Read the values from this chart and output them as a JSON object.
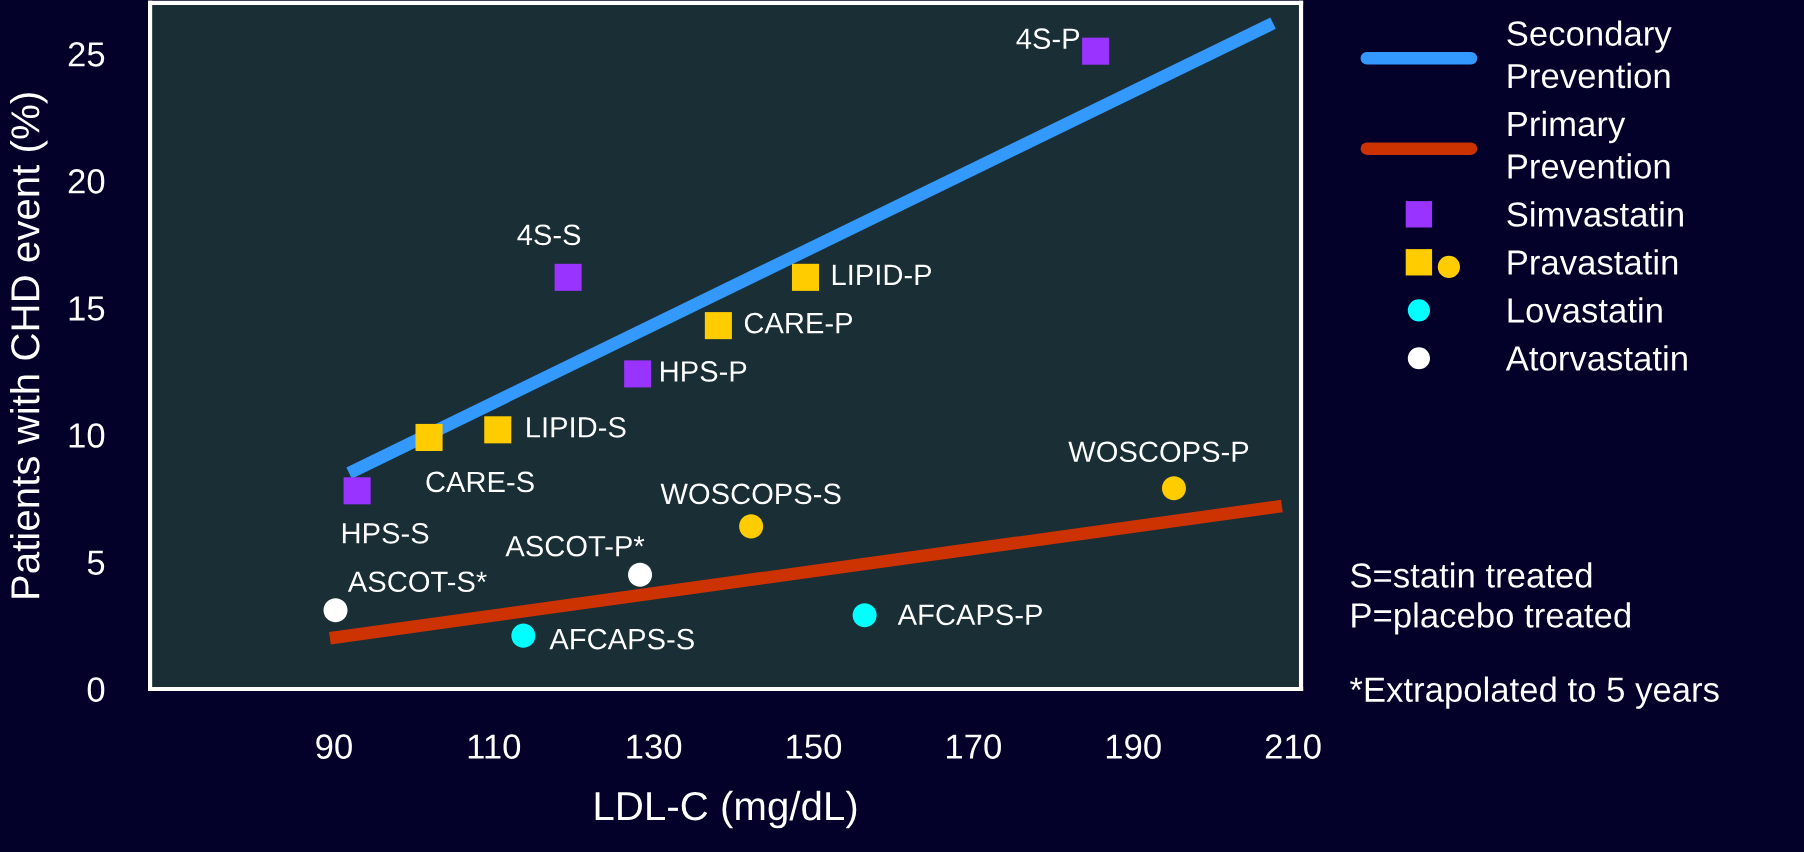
{
  "chart_data": {
    "type": "scatter",
    "xlabel": "LDL-C (mg/dL)",
    "ylabel": "Patients with CHD event (%)",
    "xlim": [
      67,
      211
    ],
    "ylim": [
      0,
      27
    ],
    "xticks": [
      90,
      110,
      130,
      150,
      170,
      190,
      210
    ],
    "yticks": [
      0,
      5,
      10,
      15,
      20,
      25
    ],
    "grid": false,
    "legend": "right",
    "series": [
      {
        "name": "Secondary\nPrevention",
        "type": "line",
        "color": "#3399ff",
        "marker": "none",
        "x": [
          91.9,
          207.5
        ],
        "values": [
          8.5,
          26.2
        ]
      },
      {
        "name": "Primary\nPrevention",
        "type": "line",
        "color": "#cc3300",
        "marker": "none",
        "x": [
          89.5,
          208.6
        ],
        "values": [
          2.0,
          7.2
        ]
      },
      {
        "name": "Simvastatin",
        "color": "#9933ff",
        "marker": "square",
        "x": [
          92.9,
          119.3,
          128.0,
          185.3
        ],
        "values": [
          7.8,
          16.2,
          12.4,
          25.1
        ]
      },
      {
        "name": "Pravastatin",
        "color": "#ffcc00",
        "marker": "square",
        "x": [
          101.9,
          110.5,
          138.1,
          149.0
        ],
        "values": [
          9.9,
          10.2,
          14.3,
          16.2
        ]
      },
      {
        "color": "#ffcc00",
        "marker": "circle",
        "x": [
          142.2,
          195.1
        ],
        "values": [
          6.4,
          7.9
        ]
      },
      {
        "name": "Lovastatin",
        "color": "#00ffff",
        "marker": "circle",
        "x": [
          113.7,
          156.4
        ],
        "values": [
          2.1,
          2.9
        ]
      },
      {
        "name": "Atorvastatin",
        "color": "#ffffff",
        "marker": "circle",
        "x": [
          90.2,
          128.3
        ],
        "values": [
          3.1,
          4.5
        ]
      }
    ],
    "annotations": [
      {
        "text": "HPS-S",
        "x": 92.9,
        "y": 7.8
      },
      {
        "text": "CARE-S",
        "x": 101.9,
        "y": 9.9
      },
      {
        "text": "LIPID-S",
        "x": 110.5,
        "y": 10.2
      },
      {
        "text": "4S-S",
        "x": 119.3,
        "y": 16.2
      },
      {
        "text": "HPS-P",
        "x": 128.0,
        "y": 12.4
      },
      {
        "text": "ASCOT-P*",
        "x": 128.3,
        "y": 4.5
      },
      {
        "text": "ASCOT-S*",
        "x": 90.2,
        "y": 3.1
      },
      {
        "text": "AFCAPS-S",
        "x": 113.7,
        "y": 2.1
      },
      {
        "text": "WOSCOPS-S",
        "x": 142.2,
        "y": 6.4
      },
      {
        "text": "CARE-P",
        "x": 138.1,
        "y": 14.3
      },
      {
        "text": "LIPID-P",
        "x": 149.0,
        "y": 16.2
      },
      {
        "text": "4S-P",
        "x": 185.3,
        "y": 25.1
      },
      {
        "text": "AFCAPS-P",
        "x": 156.4,
        "y": 2.9
      },
      {
        "text": "WOSCOPS-P",
        "x": 195.1,
        "y": 7.9
      },
      "S=statin treated\nP=placebo treated",
      "*Extrapolated to 5 years"
    ]
  }
}
